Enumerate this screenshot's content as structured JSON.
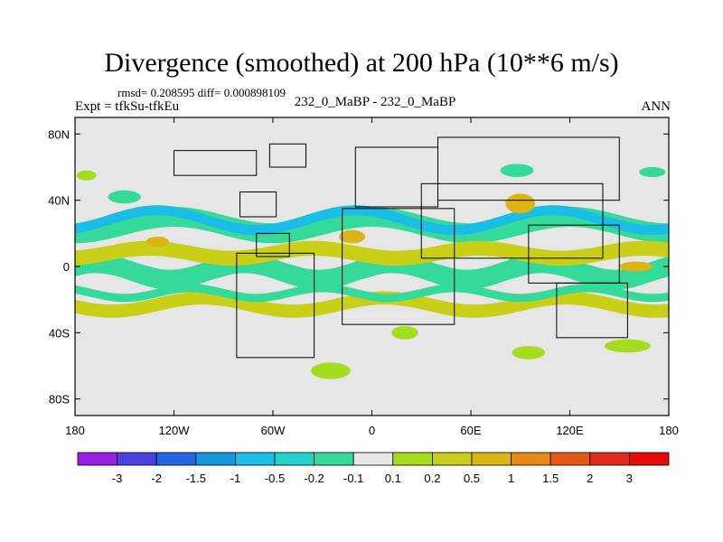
{
  "header": {
    "title": "Divergence (smoothed) at 200 hPa (10**6 m/s)",
    "stats": "rmsd= 0.208595 diff= 0.000898109",
    "expt": "Expt = tfkSu-tfkEu",
    "case": "232_0_MaBP - 232_0_MaBP",
    "period": "ANN"
  },
  "chart_data": {
    "type": "heatmap",
    "title": "Divergence (smoothed) at 200 hPa (10**6 m/s)",
    "projection": "cylindrical-equidistant",
    "xlim": [
      180,
      -180
    ],
    "ylim": [
      -90,
      90
    ],
    "x_ticks": [
      {
        "value": 180,
        "label": "180"
      },
      {
        "value": -120,
        "label": "120W"
      },
      {
        "value": -60,
        "label": "60W"
      },
      {
        "value": 0,
        "label": "0"
      },
      {
        "value": 60,
        "label": "60E"
      },
      {
        "value": 120,
        "label": "120E"
      },
      {
        "value": 180,
        "label": "180"
      }
    ],
    "y_ticks": [
      {
        "value": 80,
        "label": "80N"
      },
      {
        "value": 40,
        "label": "40N"
      },
      {
        "value": 0,
        "label": "0"
      },
      {
        "value": -40,
        "label": "40S"
      },
      {
        "value": -80,
        "label": "80S"
      }
    ],
    "background_color": "#e6e6e6",
    "colorbar": {
      "labels": [
        "-3",
        "-2",
        "-1.5",
        "-1",
        "-0.5",
        "-0.2",
        "-0.1",
        "0.1",
        "0.2",
        "0.5",
        "1",
        "1.5",
        "2",
        "3"
      ],
      "colors": [
        "#9a1ee6",
        "#4a3fe0",
        "#2466e8",
        "#1596e0",
        "#19bde6",
        "#22d2cc",
        "#35d99a",
        "#e6e6e6",
        "#a6dc1e",
        "#c8cf16",
        "#dcb414",
        "#e68a14",
        "#e6581a",
        "#e62a1e",
        "#e60a0a"
      ]
    },
    "bands": [
      {
        "name": "tropical-negative",
        "color": "#19bde6",
        "lat_center": -3,
        "amp": 4,
        "width": 6,
        "wavelength": 90,
        "phase": 0
      },
      {
        "name": "tropical-negative-edge",
        "color": "#35d99a",
        "lat_center": -3,
        "amp": 5,
        "width": 12,
        "wavelength": 90,
        "phase": 10
      },
      {
        "name": "nh-negative",
        "color": "#35d99a",
        "lat_center": 25,
        "amp": 5,
        "width": 12,
        "wavelength": 120,
        "phase": 30
      },
      {
        "name": "nh-negative-core",
        "color": "#19bde6",
        "lat_center": 28,
        "amp": 6,
        "width": 6,
        "wavelength": 120,
        "phase": 40
      },
      {
        "name": "nh-positive",
        "color": "#c8cf16",
        "lat_center": 8,
        "amp": 3,
        "width": 9,
        "wavelength": 100,
        "phase": 60
      },
      {
        "name": "sh-positive",
        "color": "#c8cf16",
        "lat_center": -23,
        "amp": 4,
        "width": 8,
        "wavelength": 110,
        "phase": 20
      },
      {
        "name": "sh-negative",
        "color": "#35d99a",
        "lat_center": -16,
        "amp": 3,
        "width": 5,
        "wavelength": 80,
        "phase": 50
      }
    ],
    "blobs": [
      {
        "lon": -173,
        "lat": 55,
        "rx": 6,
        "ry": 3,
        "color": "#a6dc1e"
      },
      {
        "lon": -150,
        "lat": 42,
        "rx": 10,
        "ry": 4,
        "color": "#35d99a"
      },
      {
        "lon": 88,
        "lat": 58,
        "rx": 10,
        "ry": 4,
        "color": "#35d99a"
      },
      {
        "lon": 170,
        "lat": 57,
        "rx": 8,
        "ry": 3,
        "color": "#35d99a"
      },
      {
        "lon": -25,
        "lat": -63,
        "rx": 12,
        "ry": 5,
        "color": "#a6dc1e"
      },
      {
        "lon": 95,
        "lat": -52,
        "rx": 10,
        "ry": 4,
        "color": "#a6dc1e"
      },
      {
        "lon": 155,
        "lat": -48,
        "rx": 14,
        "ry": 4,
        "color": "#a6dc1e"
      },
      {
        "lon": 20,
        "lat": -40,
        "rx": 8,
        "ry": 4,
        "color": "#a6dc1e"
      },
      {
        "lon": 90,
        "lat": 38,
        "rx": 9,
        "ry": 6,
        "color": "#dcb414"
      },
      {
        "lon": -12,
        "lat": 18,
        "rx": 8,
        "ry": 4,
        "color": "#dcb414"
      },
      {
        "lon": -130,
        "lat": 15,
        "rx": 7,
        "ry": 3,
        "color": "#dcb414"
      },
      {
        "lon": 160,
        "lat": 0,
        "rx": 10,
        "ry": 3,
        "color": "#dcb414"
      }
    ],
    "coastline_boxes": [
      [
        -62,
        74,
        -40,
        60
      ],
      [
        -80,
        45,
        -58,
        30
      ],
      [
        -120,
        70,
        -70,
        55
      ],
      [
        -70,
        20,
        -50,
        6
      ],
      [
        -82,
        8,
        -35,
        -55
      ],
      [
        -18,
        35,
        50,
        -35
      ],
      [
        -10,
        72,
        40,
        36
      ],
      [
        40,
        78,
        150,
        40
      ],
      [
        30,
        50,
        140,
        5
      ],
      [
        95,
        25,
        150,
        -10
      ],
      [
        112,
        -10,
        155,
        -43
      ]
    ]
  }
}
